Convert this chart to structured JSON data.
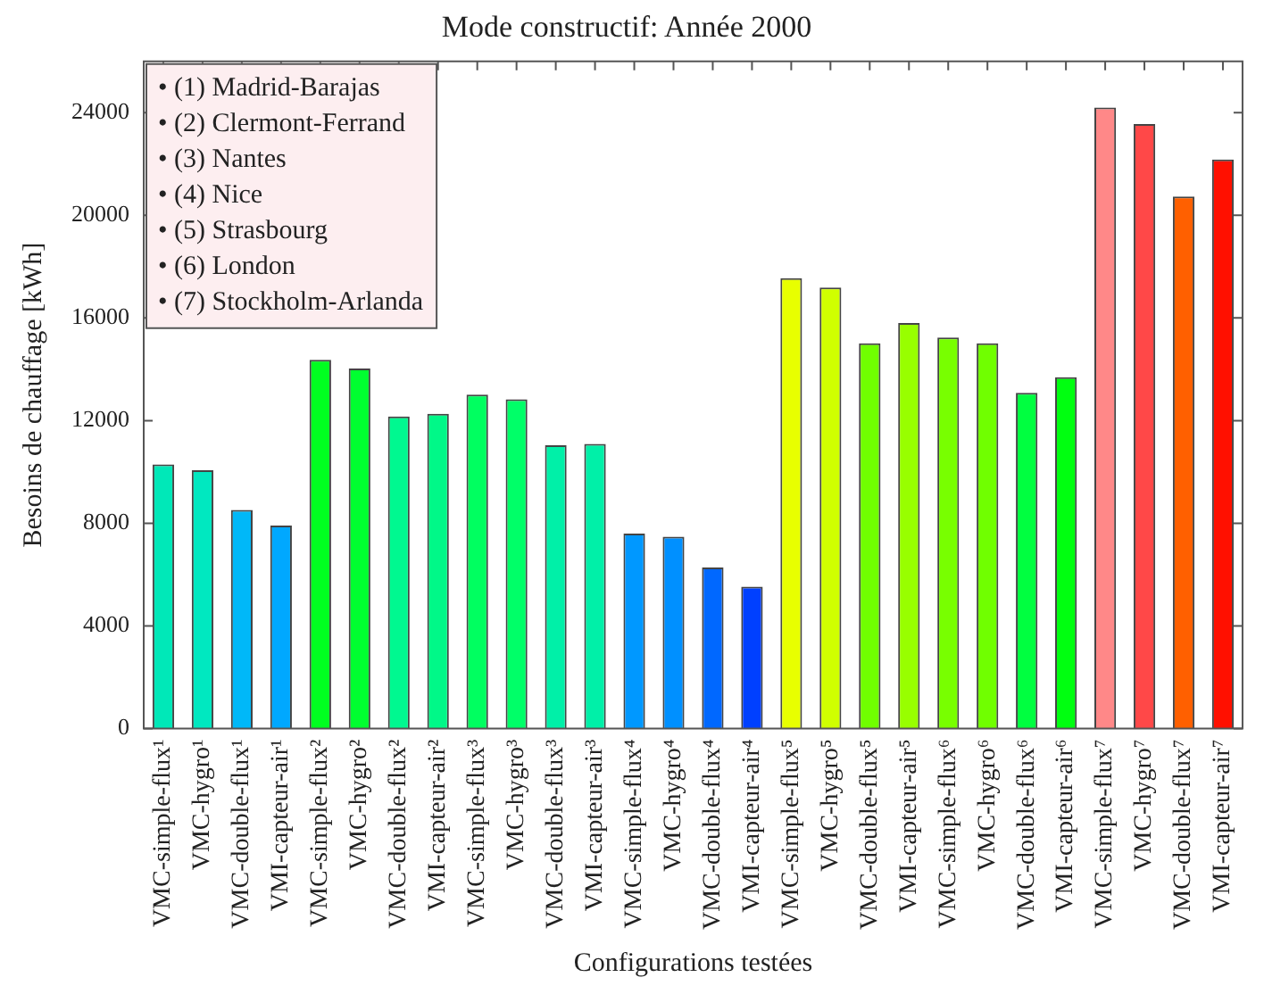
{
  "chart_data": {
    "type": "bar",
    "title": "Mode constructif: Année 2000",
    "xlabel": "Configurations testées",
    "ylabel": "Besoins de chauffage [kWh]",
    "categories": [
      "VMC-simple-flux¹",
      "VMC-hygro¹",
      "VMC-double-flux¹",
      "VMI-capteur-air¹",
      "VMC-simple-flux²",
      "VMC-hygro²",
      "VMC-double-flux²",
      "VMI-capteur-air²",
      "VMC-simple-flux³",
      "VMC-hygro³",
      "VMC-double-flux³",
      "VMI-capteur-air³",
      "VMC-simple-flux⁴",
      "VMC-hygro⁴",
      "VMC-double-flux⁴",
      "VMI-capteur-air⁴",
      "VMC-simple-flux⁵",
      "VMC-hygro⁵",
      "VMC-double-flux⁵",
      "VMI-capteur-air⁵",
      "VMC-simple-flux⁶",
      "VMC-hygro⁶",
      "VMC-double-flux⁶",
      "VMI-capteur-air⁶",
      "VMC-simple-flux⁷",
      "VMC-hygro⁷",
      "VMC-double-flux⁷",
      "VMI-capteur-air⁷"
    ],
    "values": [
      10290,
      10070,
      8520,
      7910,
      14370,
      14030,
      12160,
      12270,
      13010,
      12830,
      11040,
      11090,
      7600,
      7480,
      6280,
      5530,
      17550,
      17190,
      15010,
      15800,
      15240,
      15010,
      13080,
      13690,
      24200,
      23560,
      20730,
      22180
    ],
    "colors": [
      "#00e8b8",
      "#00e8c0",
      "#00b8f8",
      "#00a8ff",
      "#00ff20",
      "#00ff30",
      "#00f890",
      "#00f888",
      "#00ff60",
      "#00ff68",
      "#00f0a8",
      "#00f0a8",
      "#0098ff",
      "#0090ff",
      "#0068ff",
      "#0040ff",
      "#e8ff00",
      "#d0ff00",
      "#70ff00",
      "#98ff00",
      "#78ff00",
      "#70ff00",
      "#00ff40",
      "#00ff10",
      "#ff8888",
      "#ff4848",
      "#ff6000",
      "#ff1000"
    ],
    "ylim": [
      0,
      26000
    ],
    "yticks": [
      0,
      4000,
      8000,
      12000,
      16000,
      20000,
      24000
    ],
    "grid": false,
    "legend": false,
    "annotations": [
      "• (1) Madrid-Barajas",
      "• (2) Clermont-Ferrand",
      "• (3) Nantes",
      "• (4) Nice",
      "• (5) Strasbourg",
      "• (6) London",
      "• (7) Stockholm-Arlanda"
    ]
  }
}
